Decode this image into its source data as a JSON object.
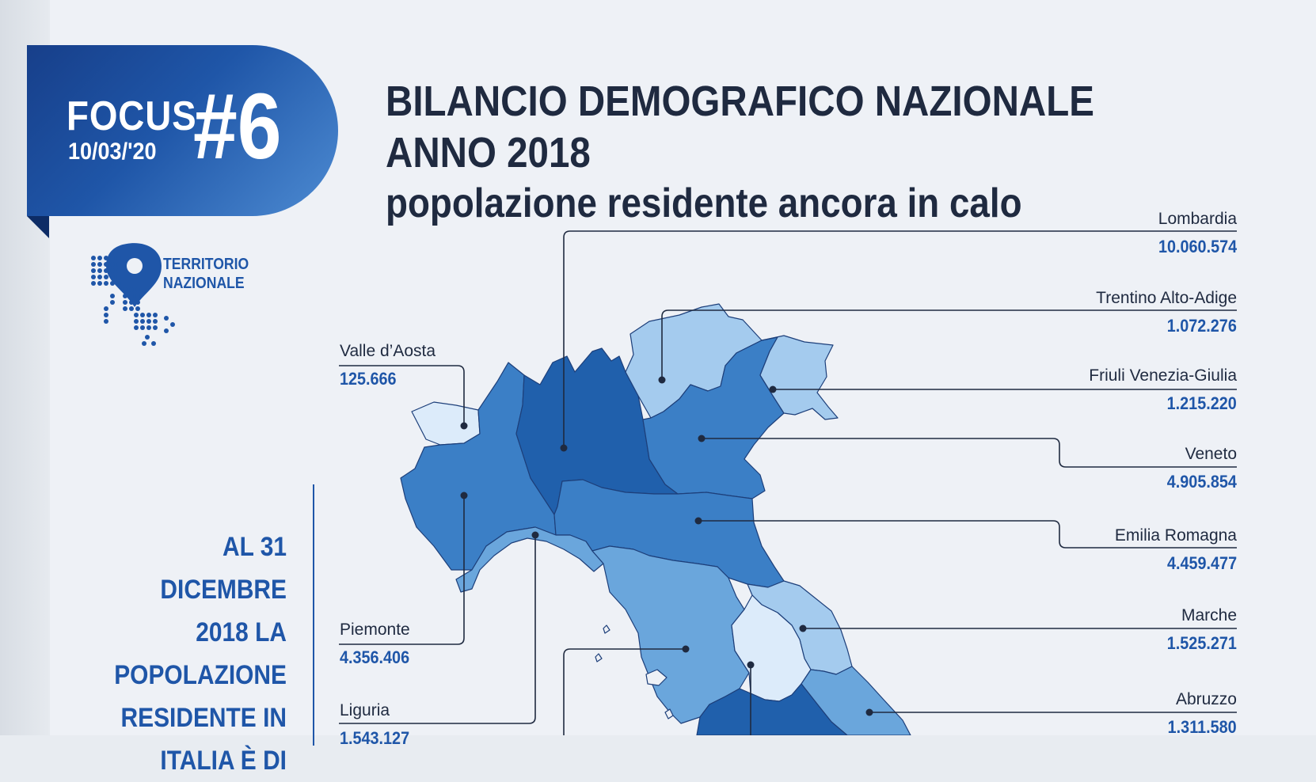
{
  "badge": {
    "focus": "FOCUS",
    "date": "10/03/'20",
    "number": "#6"
  },
  "title": {
    "line1": "BILANCIO DEMOGRAFICO NAZIONALE ANNO 2018",
    "line2": "popolazione residente ancora in calo"
  },
  "logo": {
    "line1": "TERRITORIO",
    "line2": "NAZIONALE"
  },
  "intro": {
    "line1": "AL 31 DICEMBRE",
    "line2": "2018 LA",
    "line3": "POPOLAZIONE",
    "line4": "RESIDENTE IN",
    "line5": "ITALIA È DI"
  },
  "regions": {
    "lombardia": {
      "name": "Lombardia",
      "value": "10.060.574"
    },
    "trentino": {
      "name": "Trentino Alto-Adige",
      "value": "1.072.276"
    },
    "friuli": {
      "name": "Friuli Venezia-Giulia",
      "value": "1.215.220"
    },
    "veneto": {
      "name": "Veneto",
      "value": "4.905.854"
    },
    "emilia": {
      "name": "Emilia Romagna",
      "value": "4.459.477"
    },
    "marche": {
      "name": "Marche",
      "value": "1.525.271"
    },
    "abruzzo": {
      "name": "Abruzzo",
      "value": "1.311.580"
    },
    "valle": {
      "name": "Valle d’Aosta",
      "value": "125.666"
    },
    "piemonte": {
      "name": "Piemonte",
      "value": "4.356.406"
    },
    "liguria": {
      "name": "Liguria",
      "value": "1.543.127"
    }
  },
  "colors": {
    "darkest": "#2060ac",
    "dark": "#3b7fc6",
    "mid": "#6aa6dc",
    "light": "#a4cbee",
    "lightest": "#dcebfa",
    "accent": "#1f56a8"
  }
}
